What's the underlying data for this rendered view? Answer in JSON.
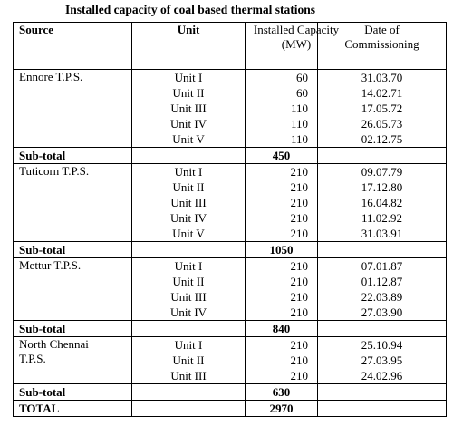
{
  "title": "Installed capacity of coal based thermal stations",
  "table": {
    "header": [
      "Source",
      "Unit",
      "Installed Capacity (MW)",
      "Date of Commissioning"
    ],
    "groups": [
      {
        "source": "Ennore T.P.S.",
        "units": [
          {
            "unit": "Unit I",
            "capacity": 60,
            "date": "31.03.70"
          },
          {
            "unit": "Unit II",
            "capacity": 60,
            "date": "14.02.71"
          },
          {
            "unit": "Unit III",
            "capacity": 110,
            "date": "17.05.72"
          },
          {
            "unit": "Unit IV",
            "capacity": 110,
            "date": "26.05.73"
          },
          {
            "unit": "Unit V",
            "capacity": 110,
            "date": "02.12.75"
          }
        ],
        "subtotal_label": "Sub-total",
        "subtotal": 450
      },
      {
        "source": "Tuticorn T.P.S.",
        "units": [
          {
            "unit": "Unit I",
            "capacity": 210,
            "date": "09.07.79"
          },
          {
            "unit": "Unit II",
            "capacity": 210,
            "date": "17.12.80"
          },
          {
            "unit": "Unit III",
            "capacity": 210,
            "date": "16.04.82"
          },
          {
            "unit": "Unit IV",
            "capacity": 210,
            "date": "11.02.92"
          },
          {
            "unit": "Unit V",
            "capacity": 210,
            "date": "31.03.91"
          }
        ],
        "subtotal_label": "Sub-total",
        "subtotal": 1050
      },
      {
        "source": "Mettur T.P.S.",
        "units": [
          {
            "unit": "Unit I",
            "capacity": 210,
            "date": "07.01.87"
          },
          {
            "unit": "Unit II",
            "capacity": 210,
            "date": "01.12.87"
          },
          {
            "unit": "Unit III",
            "capacity": 210,
            "date": "22.03.89"
          },
          {
            "unit": "Unit IV",
            "capacity": 210,
            "date": "27.03.90"
          }
        ],
        "subtotal_label": "Sub-total",
        "subtotal": 840
      },
      {
        "source": "North Chennai T.P.S.",
        "units": [
          {
            "unit": "Unit I",
            "capacity": 210,
            "date": "25.10.94"
          },
          {
            "unit": "Unit II",
            "capacity": 210,
            "date": "27.03.95"
          },
          {
            "unit": "Unit III",
            "capacity": 210,
            "date": "24.02.96"
          }
        ],
        "subtotal_label": "Sub-total",
        "subtotal": 630
      }
    ],
    "total_label": "TOTAL",
    "total": 2970
  }
}
